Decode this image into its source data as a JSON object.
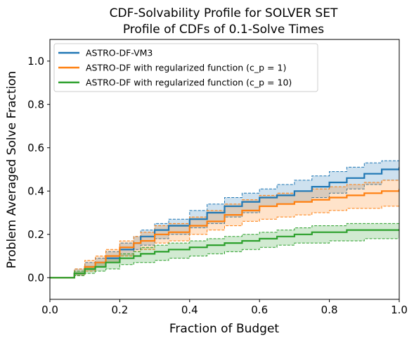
{
  "chart_data": {
    "type": "line",
    "title": "CDF-Solvability Profile for SOLVER SET",
    "subtitle": "Profile of CDFs of 0.1-Solve Times",
    "xlabel": "Fraction of Budget",
    "ylabel": "Problem Averaged Solve Fraction",
    "xlim": [
      0.0,
      1.0
    ],
    "ylim": [
      -0.1,
      1.1
    ],
    "xticks": [
      "0.0",
      "0.2",
      "0.4",
      "0.6",
      "0.8",
      "1.0"
    ],
    "yticks": [
      "0.0",
      "0.2",
      "0.4",
      "0.6",
      "0.8",
      "1.0"
    ],
    "grid": false,
    "legend_position": "top-left",
    "series": [
      {
        "name": "ASTRO-DF-VM3",
        "color": "#1f77b4",
        "x": [
          0.0,
          0.06,
          0.07,
          0.1,
          0.13,
          0.16,
          0.2,
          0.24,
          0.26,
          0.3,
          0.34,
          0.4,
          0.45,
          0.5,
          0.55,
          0.6,
          0.65,
          0.7,
          0.75,
          0.8,
          0.85,
          0.9,
          0.95,
          1.0
        ],
        "y": [
          0.0,
          0.0,
          0.02,
          0.05,
          0.07,
          0.09,
          0.13,
          0.16,
          0.19,
          0.22,
          0.24,
          0.27,
          0.3,
          0.33,
          0.35,
          0.37,
          0.38,
          0.4,
          0.42,
          0.44,
          0.46,
          0.48,
          0.5,
          0.51
        ],
        "upper": [
          0.0,
          0.0,
          0.04,
          0.07,
          0.09,
          0.12,
          0.16,
          0.19,
          0.22,
          0.25,
          0.27,
          0.31,
          0.34,
          0.37,
          0.39,
          0.41,
          0.43,
          0.45,
          0.47,
          0.49,
          0.51,
          0.53,
          0.54,
          0.55
        ],
        "lower": [
          0.0,
          0.0,
          0.01,
          0.03,
          0.05,
          0.07,
          0.1,
          0.13,
          0.15,
          0.18,
          0.2,
          0.23,
          0.25,
          0.28,
          0.3,
          0.33,
          0.34,
          0.35,
          0.37,
          0.39,
          0.41,
          0.43,
          0.45,
          0.47
        ]
      },
      {
        "name": "ASTRO-DF with regularized function (c_p = 1)",
        "color": "#ff7f0e",
        "x": [
          0.0,
          0.06,
          0.07,
          0.1,
          0.13,
          0.16,
          0.2,
          0.24,
          0.26,
          0.3,
          0.34,
          0.4,
          0.45,
          0.5,
          0.55,
          0.6,
          0.65,
          0.7,
          0.75,
          0.8,
          0.85,
          0.9,
          0.95,
          1.0
        ],
        "y": [
          0.0,
          0.0,
          0.02,
          0.05,
          0.07,
          0.1,
          0.14,
          0.16,
          0.17,
          0.2,
          0.21,
          0.24,
          0.26,
          0.29,
          0.31,
          0.33,
          0.34,
          0.35,
          0.36,
          0.37,
          0.38,
          0.39,
          0.4,
          0.41
        ],
        "upper": [
          0.0,
          0.0,
          0.04,
          0.08,
          0.1,
          0.13,
          0.17,
          0.19,
          0.21,
          0.24,
          0.25,
          0.28,
          0.31,
          0.34,
          0.36,
          0.38,
          0.39,
          0.4,
          0.41,
          0.42,
          0.43,
          0.44,
          0.45,
          0.46
        ],
        "lower": [
          0.0,
          0.0,
          0.01,
          0.03,
          0.05,
          0.07,
          0.1,
          0.12,
          0.13,
          0.16,
          0.17,
          0.2,
          0.22,
          0.24,
          0.26,
          0.27,
          0.28,
          0.29,
          0.3,
          0.31,
          0.32,
          0.32,
          0.33,
          0.33
        ]
      },
      {
        "name": "ASTRO-DF with regularized function (c_p = 10)",
        "color": "#2ca02c",
        "x": [
          0.0,
          0.06,
          0.07,
          0.1,
          0.13,
          0.16,
          0.2,
          0.24,
          0.26,
          0.3,
          0.34,
          0.4,
          0.45,
          0.5,
          0.55,
          0.6,
          0.65,
          0.7,
          0.75,
          0.8,
          0.85,
          0.9,
          0.95,
          1.0
        ],
        "y": [
          0.0,
          0.0,
          0.02,
          0.04,
          0.05,
          0.07,
          0.09,
          0.1,
          0.11,
          0.12,
          0.13,
          0.14,
          0.15,
          0.16,
          0.17,
          0.18,
          0.19,
          0.2,
          0.21,
          0.21,
          0.22,
          0.22,
          0.22,
          0.22
        ],
        "upper": [
          0.0,
          0.0,
          0.03,
          0.05,
          0.07,
          0.09,
          0.11,
          0.12,
          0.14,
          0.15,
          0.16,
          0.17,
          0.18,
          0.19,
          0.2,
          0.21,
          0.22,
          0.23,
          0.24,
          0.24,
          0.25,
          0.25,
          0.25,
          0.26
        ],
        "lower": [
          0.0,
          0.0,
          0.01,
          0.02,
          0.03,
          0.04,
          0.06,
          0.07,
          0.07,
          0.08,
          0.09,
          0.1,
          0.11,
          0.12,
          0.13,
          0.14,
          0.15,
          0.16,
          0.16,
          0.17,
          0.17,
          0.18,
          0.18,
          0.18
        ]
      }
    ]
  }
}
